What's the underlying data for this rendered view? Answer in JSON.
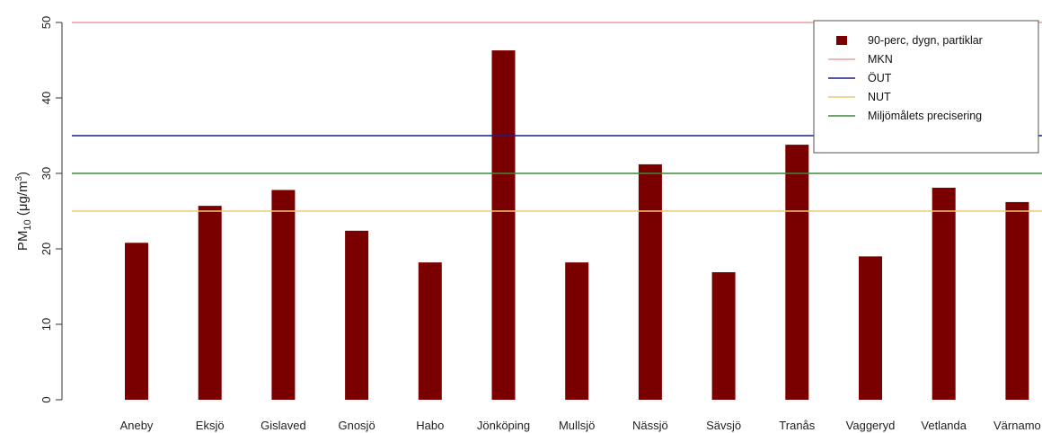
{
  "chart_data": {
    "type": "bar",
    "categories": [
      "Aneby",
      "Eksjö",
      "Gislaved",
      "Gnosjö",
      "Habo",
      "Jönköping",
      "Mullsjö",
      "Nässjö",
      "Sävsjö",
      "Tranås",
      "Vaggeryd",
      "Vetlanda",
      "Värnamo"
    ],
    "series": [
      {
        "name": "90-perc, dygn, partiklar",
        "color": "#7a0000",
        "values": [
          20.8,
          25.7,
          27.8,
          22.4,
          18.2,
          46.3,
          18.2,
          31.2,
          16.9,
          33.8,
          19.0,
          28.1,
          26.2
        ]
      }
    ],
    "reference_lines": [
      {
        "name": "MKN",
        "value": 50,
        "color": "#e8a0a0"
      },
      {
        "name": "ÖUT",
        "value": 35,
        "color": "#1a1f8a"
      },
      {
        "name": "NUT",
        "value": 25,
        "color": "#f0c878"
      },
      {
        "name": "Miljömålets precisering",
        "value": 30,
        "color": "#3a8a3a"
      }
    ],
    "ylabel": {
      "base": "PM",
      "sub": "10",
      "unit_pre": " (μg/m",
      "sup": "3",
      "unit_post": ")"
    },
    "ylim": [
      0,
      50
    ],
    "yticks": [
      0,
      10,
      20,
      30,
      40,
      50
    ],
    "legend_position": "top-right",
    "grid": false
  }
}
